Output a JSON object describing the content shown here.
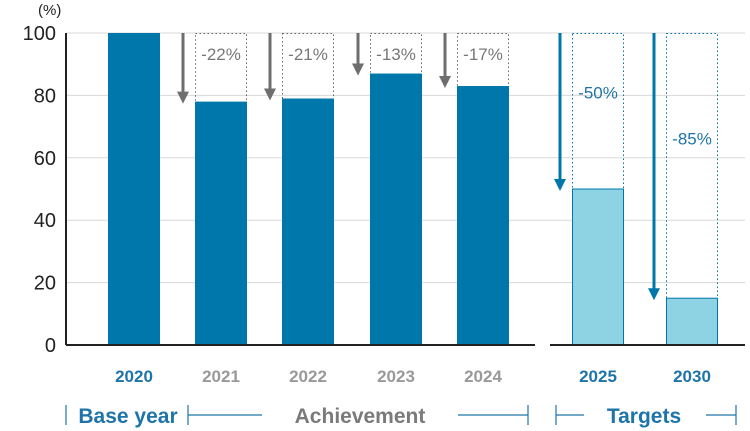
{
  "chart_data": {
    "type": "bar",
    "ylabel": "(%)",
    "ylim": [
      0,
      100
    ],
    "yticks": [
      0,
      20,
      40,
      60,
      80,
      100
    ],
    "grid": true,
    "categories": [
      "2020",
      "2021",
      "2022",
      "2023",
      "2024",
      "2025",
      "2030"
    ],
    "values": [
      100,
      78,
      79,
      87,
      83,
      50,
      15
    ],
    "reductions": [
      "",
      "-22%",
      "-21%",
      "-13%",
      "-17%",
      "-50%",
      "-85%"
    ],
    "kinds": [
      "base",
      "achieved",
      "achieved",
      "achieved",
      "achieved",
      "target",
      "target"
    ],
    "groups": [
      {
        "label": "Base year",
        "kind": "base"
      },
      {
        "label": "Achievement",
        "kind": "achieved"
      },
      {
        "label": "Targets",
        "kind": "target"
      }
    ]
  },
  "colors": {
    "base_bar": "#0077aa",
    "achieved_bar": "#0077aa",
    "target_bar": "#8dd3e3",
    "target_stroke": "#0077aa",
    "blue_text": "#1e74a8",
    "gray_text": "#999999",
    "gray_arrow": "#6e6e6e",
    "group_gray": "#7a7a7a",
    "grid": "#d8d8d8"
  }
}
